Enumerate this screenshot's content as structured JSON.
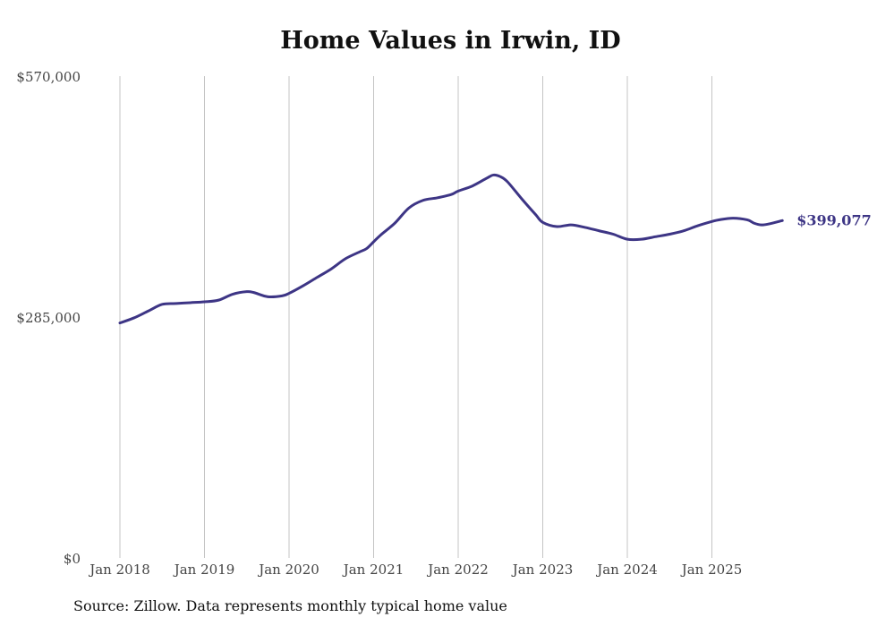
{
  "chart_data": {
    "type": "line",
    "title": "Home Values in Irwin, ID",
    "xlabel": "",
    "ylabel": "",
    "ylim": [
      0,
      570000
    ],
    "y_ticks": [
      0,
      285000,
      570000
    ],
    "y_tick_labels": [
      "$0",
      "$285,000",
      "$570,000"
    ],
    "x_ticks": [
      2018,
      2019,
      2020,
      2021,
      2022,
      2023,
      2024,
      2025
    ],
    "x_tick_labels": [
      "Jan 2018",
      "Jan 2019",
      "Jan 2020",
      "Jan 2021",
      "Jan 2022",
      "Jan 2023",
      "Jan 2024",
      "Jan 2025"
    ],
    "grid": "vertical",
    "line_color": "#3d3585",
    "end_label": "$399,077",
    "series": [
      {
        "name": "Typical home value",
        "x": [
          2018.0,
          2018.167,
          2018.333,
          2018.5,
          2018.667,
          2018.833,
          2019.0,
          2019.167,
          2019.333,
          2019.5,
          2019.583,
          2019.75,
          2019.917,
          2020.0,
          2020.167,
          2020.333,
          2020.5,
          2020.667,
          2020.833,
          2020.917,
          2021.0,
          2021.083,
          2021.25,
          2021.417,
          2021.583,
          2021.75,
          2021.917,
          2022.0,
          2022.167,
          2022.333,
          2022.417,
          2022.5,
          2022.583,
          2022.75,
          2022.917,
          2023.0,
          2023.167,
          2023.333,
          2023.5,
          2023.667,
          2023.833,
          2024.0,
          2024.167,
          2024.333,
          2024.5,
          2024.667,
          2024.833,
          2025.0,
          2025.083,
          2025.25,
          2025.417,
          2025.5,
          2025.583,
          2025.667,
          2025.833
        ],
        "y": [
          278000,
          284000,
          292000,
          300000,
          301000,
          302000,
          303000,
          305000,
          312000,
          315000,
          314000,
          309000,
          310000,
          313000,
          322000,
          332000,
          342000,
          354000,
          362000,
          366000,
          374000,
          382000,
          396000,
          414000,
          423000,
          426000,
          430000,
          434000,
          440000,
          449000,
          453000,
          451000,
          445000,
          425000,
          406000,
          397000,
          392000,
          394000,
          391000,
          387000,
          383000,
          377000,
          377000,
          380000,
          383000,
          387000,
          393000,
          398000,
          400000,
          402000,
          400000,
          396000,
          394000,
          395000,
          399077
        ]
      }
    ]
  },
  "source_note": "Source: Zillow. Data represents monthly typical home value"
}
